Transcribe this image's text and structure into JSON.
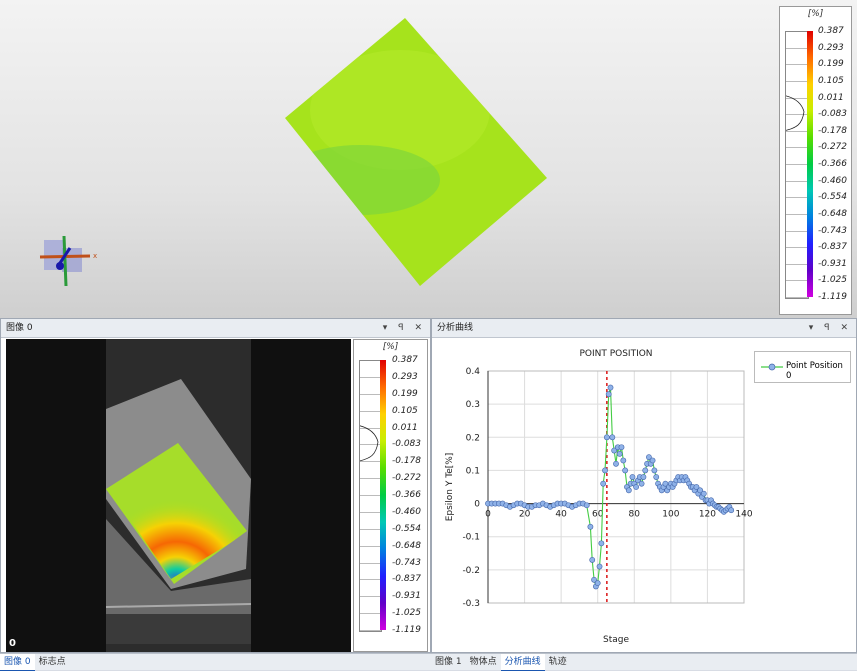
{
  "viewport3d": {
    "axis_x_label": "x",
    "legend": {
      "unit": "[%]",
      "ticks": [
        "0.387",
        "0.293",
        "0.199",
        "0.105",
        "0.011",
        "-0.083",
        "-0.178",
        "-0.272",
        "-0.366",
        "-0.460",
        "-0.554",
        "-0.648",
        "-0.743",
        "-0.837",
        "-0.931",
        "-1.025",
        "-1.119"
      ]
    }
  },
  "image_panel": {
    "title": "图像 0",
    "frame_number": "0",
    "header_buttons": "▾ ꟼ ✕",
    "legend": {
      "unit": "[%]",
      "ticks": [
        "0.387",
        "0.293",
        "0.199",
        "0.105",
        "0.011",
        "-0.083",
        "-0.178",
        "-0.272",
        "-0.366",
        "-0.460",
        "-0.554",
        "-0.648",
        "-0.743",
        "-0.837",
        "-0.931",
        "-1.025",
        "-1.119"
      ]
    }
  },
  "chart_panel": {
    "title": "分析曲线",
    "header_buttons": "▾ ꟼ ✕"
  },
  "left_tabs": [
    "图像 0",
    "标志点"
  ],
  "right_tabs": [
    "图像 1",
    "物体点",
    "分析曲线",
    "轨迹"
  ],
  "chart_data": {
    "type": "line",
    "title": "POINT POSITION",
    "xlabel": "Stage",
    "ylabel": "Epsilon Y Te[%]",
    "xlim": [
      0,
      140
    ],
    "ylim": [
      -0.3,
      0.4
    ],
    "xticks": [
      "0",
      "20",
      "40",
      "60",
      "80",
      "100",
      "120",
      "140"
    ],
    "yticks": [
      "0.4",
      "0.3",
      "0.2",
      "0.1",
      "0",
      "-0.1",
      "-0.2",
      "-0.3"
    ],
    "grid": true,
    "legend_position": "top-right",
    "marker_line_x": 65,
    "series": [
      {
        "name": "Point Position 0",
        "color": "#44cc44",
        "marker_color": "#8fb2e8",
        "x": [
          0,
          2,
          4,
          6,
          8,
          10,
          12,
          14,
          16,
          18,
          20,
          22,
          24,
          26,
          28,
          30,
          32,
          34,
          36,
          38,
          40,
          42,
          44,
          46,
          48,
          50,
          52,
          54,
          56,
          57,
          58,
          59,
          60,
          61,
          62,
          63,
          64,
          65,
          66,
          67,
          68,
          69,
          70,
          71,
          72,
          73,
          74,
          75,
          76,
          77,
          78,
          79,
          80,
          81,
          82,
          83,
          84,
          85,
          86,
          87,
          88,
          89,
          90,
          91,
          92,
          93,
          94,
          95,
          96,
          97,
          98,
          99,
          100,
          101,
          102,
          103,
          104,
          105,
          106,
          107,
          108,
          109,
          110,
          111,
          112,
          113,
          114,
          115,
          116,
          117,
          118,
          119,
          120,
          121,
          122,
          123,
          124,
          125,
          126,
          127,
          128,
          129,
          130,
          131,
          132,
          133
        ],
        "y": [
          0,
          0,
          0,
          0,
          0,
          -0.005,
          -0.01,
          -0.005,
          0,
          0,
          -0.005,
          -0.01,
          -0.01,
          -0.005,
          -0.005,
          0,
          -0.005,
          -0.01,
          -0.005,
          0,
          0,
          0,
          -0.005,
          -0.01,
          -0.005,
          0,
          0,
          -0.005,
          -0.07,
          -0.17,
          -0.23,
          -0.25,
          -0.24,
          -0.19,
          -0.12,
          0.06,
          0.1,
          0.2,
          0.33,
          0.35,
          0.2,
          0.16,
          0.12,
          0.17,
          0.15,
          0.17,
          0.13,
          0.1,
          0.05,
          0.04,
          0.06,
          0.08,
          0.06,
          0.05,
          0.07,
          0.08,
          0.06,
          0.08,
          0.1,
          0.12,
          0.14,
          0.12,
          0.13,
          0.1,
          0.08,
          0.06,
          0.05,
          0.04,
          0.05,
          0.06,
          0.04,
          0.05,
          0.06,
          0.05,
          0.06,
          0.07,
          0.08,
          0.07,
          0.08,
          0.07,
          0.08,
          0.07,
          0.06,
          0.05,
          0.05,
          0.04,
          0.05,
          0.03,
          0.04,
          0.02,
          0.03,
          0.01,
          0.01,
          0,
          0.01,
          0,
          -0.005,
          -0.01,
          -0.01,
          -0.015,
          -0.02,
          -0.025,
          -0.02,
          -0.015,
          -0.01,
          -0.02
        ]
      }
    ]
  }
}
